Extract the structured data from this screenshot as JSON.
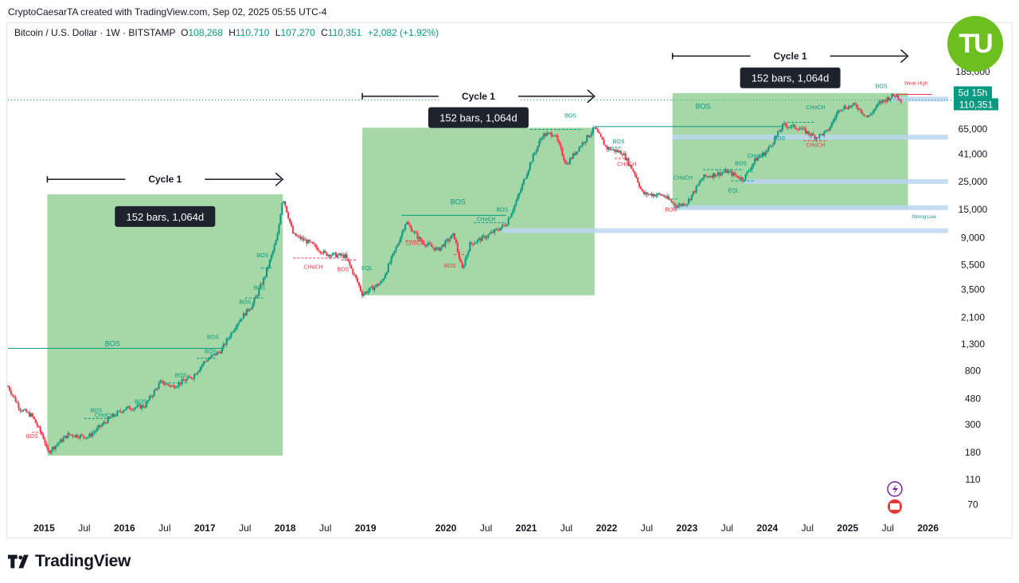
{
  "credit": "CryptoCaesarTA created with TradingView.com, Sep 02, 2025 05:55 UTC-4",
  "legend": {
    "symbol": "Bitcoin / U.S. Dollar · 1W · BITSTAMP",
    "open_label": "O",
    "open": "108,268",
    "high_label": "H",
    "high": "110,710",
    "low_label": "L",
    "low": "107,270",
    "close_label": "C",
    "close": "110,351",
    "change": "+2,082 (+1.92%)"
  },
  "badge": {
    "text": "TU"
  },
  "footer": {
    "brand": "TradingView",
    "logo_icon": "tradingview-logo-icon"
  },
  "colors": {
    "up": "#089981",
    "down": "#f23645",
    "zone": "#4caf50",
    "level": "#bbd6f2",
    "annotation_box": "#1e222d",
    "current_price": "#089981"
  },
  "chart_data": {
    "type": "candlestick",
    "scale": "log",
    "ylim": [
      55,
      320000
    ],
    "xlim": [
      2014.55,
      2026.3
    ],
    "y_ticks": [
      {
        "v": 185000,
        "t": "185,000"
      },
      {
        "v": 65000,
        "t": "65,000"
      },
      {
        "v": 41000,
        "t": "41,000"
      },
      {
        "v": 25000,
        "t": "25,000"
      },
      {
        "v": 15000,
        "t": "15,000"
      },
      {
        "v": 9000,
        "t": "9,000"
      },
      {
        "v": 5500,
        "t": "5,500"
      },
      {
        "v": 3500,
        "t": "3,500"
      },
      {
        "v": 2100,
        "t": "2,100"
      },
      {
        "v": 1300,
        "t": "1,300"
      },
      {
        "v": 800,
        "t": "800"
      },
      {
        "v": 480,
        "t": "480"
      },
      {
        "v": 300,
        "t": "300"
      },
      {
        "v": 180,
        "t": "180"
      },
      {
        "v": 110,
        "t": "110"
      },
      {
        "v": 70,
        "t": "70"
      }
    ],
    "x_ticks": [
      {
        "v": 2015,
        "t": "2015",
        "major": true
      },
      {
        "v": 2015.5,
        "t": "Jul",
        "major": false
      },
      {
        "v": 2016,
        "t": "2016",
        "major": true
      },
      {
        "v": 2016.5,
        "t": "Jul",
        "major": false
      },
      {
        "v": 2017,
        "t": "2017",
        "major": true
      },
      {
        "v": 2017.5,
        "t": "Jul",
        "major": false
      },
      {
        "v": 2018,
        "t": "2018",
        "major": true
      },
      {
        "v": 2018.5,
        "t": "Jul",
        "major": false
      },
      {
        "v": 2019,
        "t": "2019",
        "major": true
      },
      {
        "v": 2020,
        "t": "2020",
        "major": true
      },
      {
        "v": 2020.5,
        "t": "Jul",
        "major": false
      },
      {
        "v": 2021,
        "t": "2021",
        "major": true
      },
      {
        "v": 2021.5,
        "t": "Jul",
        "major": false
      },
      {
        "v": 2022,
        "t": "2022",
        "major": true
      },
      {
        "v": 2022.5,
        "t": "Jul",
        "major": false
      },
      {
        "v": 2023,
        "t": "2023",
        "major": true
      },
      {
        "v": 2023.5,
        "t": "Jul",
        "major": false
      },
      {
        "v": 2024,
        "t": "2024",
        "major": true
      },
      {
        "v": 2024.5,
        "t": "Jul",
        "major": false
      },
      {
        "v": 2025,
        "t": "2025",
        "major": true
      },
      {
        "v": 2025.5,
        "t": "Jul",
        "major": false
      },
      {
        "v": 2026,
        "t": "2026",
        "major": true
      }
    ],
    "price_path": [
      [
        2014.55,
        600
      ],
      [
        2014.7,
        400
      ],
      [
        2014.85,
        350
      ],
      [
        2015.0,
        230
      ],
      [
        2015.04,
        180
      ],
      [
        2015.3,
        250
      ],
      [
        2015.55,
        240
      ],
      [
        2015.8,
        330
      ],
      [
        2016.0,
        400
      ],
      [
        2016.25,
        420
      ],
      [
        2016.45,
        650
      ],
      [
        2016.6,
        600
      ],
      [
        2016.85,
        720
      ],
      [
        2017.0,
        950
      ],
      [
        2017.2,
        1150
      ],
      [
        2017.4,
        1900
      ],
      [
        2017.6,
        2700
      ],
      [
        2017.75,
        4500
      ],
      [
        2017.9,
        9000
      ],
      [
        2017.97,
        19000
      ],
      [
        2018.1,
        9500
      ],
      [
        2018.3,
        8200
      ],
      [
        2018.5,
        6700
      ],
      [
        2018.75,
        6400
      ],
      [
        2018.9,
        4000
      ],
      [
        2018.96,
        3200
      ],
      [
        2019.2,
        4000
      ],
      [
        2019.4,
        8000
      ],
      [
        2019.5,
        12000
      ],
      [
        2019.7,
        8300
      ],
      [
        2019.9,
        7200
      ],
      [
        2020.1,
        9500
      ],
      [
        2020.2,
        5000
      ],
      [
        2020.3,
        8000
      ],
      [
        2020.5,
        9200
      ],
      [
        2020.75,
        11500
      ],
      [
        2020.9,
        19000
      ],
      [
        2021.05,
        35000
      ],
      [
        2021.2,
        58000
      ],
      [
        2021.35,
        60000
      ],
      [
        2021.5,
        34000
      ],
      [
        2021.65,
        46000
      ],
      [
        2021.85,
        66000
      ],
      [
        2022.0,
        46000
      ],
      [
        2022.2,
        42000
      ],
      [
        2022.35,
        29000
      ],
      [
        2022.45,
        20000
      ],
      [
        2022.7,
        19500
      ],
      [
        2022.87,
        16000
      ],
      [
        2023.0,
        17000
      ],
      [
        2023.2,
        27000
      ],
      [
        2023.5,
        30000
      ],
      [
        2023.7,
        26000
      ],
      [
        2023.85,
        37000
      ],
      [
        2024.0,
        44000
      ],
      [
        2024.2,
        70000
      ],
      [
        2024.4,
        66000
      ],
      [
        2024.6,
        56000
      ],
      [
        2024.75,
        62000
      ],
      [
        2024.9,
        95000
      ],
      [
        2025.1,
        100000
      ],
      [
        2025.25,
        80000
      ],
      [
        2025.4,
        105000
      ],
      [
        2025.55,
        118000
      ],
      [
        2025.6,
        120000
      ],
      [
        2025.67,
        110351
      ]
    ],
    "current_price": {
      "value": 110351,
      "label": "110,351",
      "countdown": "5d 15h"
    },
    "zones": [
      {
        "x0": 2015.04,
        "x1": 2017.97,
        "y0": 170,
        "y1": 19800
      },
      {
        "x0": 2018.96,
        "x1": 2021.85,
        "y0": 3150,
        "y1": 66500
      },
      {
        "x0": 2022.82,
        "x1": 2025.75,
        "y0": 15200,
        "y1": 125000
      }
    ],
    "cycles": [
      {
        "label": "Cycle 1",
        "x0": 2015.04,
        "x1": 2017.97,
        "y": 26000,
        "box": "152 bars, 1,064d",
        "box_y": 13200
      },
      {
        "label": "Cycle 1",
        "x0": 2018.96,
        "x1": 2021.85,
        "y": 118000,
        "box": "152 bars, 1,064d",
        "box_y": 80000
      },
      {
        "label": "Cycle 1",
        "x0": 2022.82,
        "x1": 2025.75,
        "y": 245000,
        "box": "152 bars, 1,064d",
        "box_y": 165000
      }
    ],
    "levels": [
      {
        "x0": 2022.82,
        "x1": 2026.25,
        "y": 56000
      },
      {
        "x0": 2023.7,
        "x1": 2026.25,
        "y": 25000
      },
      {
        "x0": 2022.82,
        "x1": 2026.25,
        "y": 15500
      },
      {
        "x0": 2020.7,
        "x1": 2026.25,
        "y": 10200
      },
      {
        "x0": 2025.55,
        "x1": 2026.25,
        "y": 112000
      }
    ],
    "bos_lines": [
      {
        "x0": 2014.55,
        "x1": 2017.2,
        "y": 1200,
        "color": "up"
      },
      {
        "x0": 2019.45,
        "x1": 2020.75,
        "y": 13500,
        "color": "up"
      },
      {
        "x0": 2021.85,
        "x1": 2024.2,
        "y": 68000,
        "color": "up"
      },
      {
        "x0": 2025.6,
        "x1": 2026.05,
        "y": 122000,
        "color": "down"
      }
    ],
    "dashed_lines": [
      {
        "x0": 2015.5,
        "x1": 2015.85,
        "y": 335,
        "color": "up"
      },
      {
        "x0": 2016.45,
        "x1": 2016.8,
        "y": 640,
        "color": "up"
      },
      {
        "x0": 2016.9,
        "x1": 2017.15,
        "y": 1000,
        "color": "up"
      },
      {
        "x0": 2017.5,
        "x1": 2017.75,
        "y": 3000,
        "color": "up"
      },
      {
        "x0": 2017.7,
        "x1": 2017.85,
        "y": 5200,
        "color": "up"
      },
      {
        "x0": 2018.1,
        "x1": 2018.7,
        "y": 6200,
        "color": "down"
      },
      {
        "x0": 2018.7,
        "x1": 2018.9,
        "y": 6000,
        "color": "down"
      },
      {
        "x0": 2019.5,
        "x1": 2019.75,
        "y": 8500,
        "color": "down"
      },
      {
        "x0": 2020.1,
        "x1": 2020.25,
        "y": 6600,
        "color": "down"
      },
      {
        "x0": 2020.35,
        "x1": 2020.75,
        "y": 11800,
        "color": "up"
      },
      {
        "x0": 2021.05,
        "x1": 2021.7,
        "y": 64500,
        "color": "up"
      },
      {
        "x0": 2022.0,
        "x1": 2022.2,
        "y": 46500,
        "color": "up"
      },
      {
        "x0": 2022.1,
        "x1": 2022.3,
        "y": 38000,
        "color": "down"
      },
      {
        "x0": 2022.75,
        "x1": 2022.9,
        "y": 18200,
        "color": "up"
      },
      {
        "x0": 2023.2,
        "x1": 2023.7,
        "y": 31000,
        "color": "up"
      },
      {
        "x0": 2023.55,
        "x1": 2023.85,
        "y": 25300,
        "color": "up"
      },
      {
        "x0": 2024.25,
        "x1": 2024.6,
        "y": 73500,
        "color": "up"
      },
      {
        "x0": 2024.45,
        "x1": 2024.75,
        "y": 52500,
        "color": "down"
      },
      {
        "x0": 2014.85,
        "x1": 2015.0,
        "y": 260,
        "color": "down"
      }
    ],
    "markers": [
      {
        "text": "BOS",
        "x": 2015.85,
        "y": 1250,
        "color": "up",
        "size": 9
      },
      {
        "text": "BOS",
        "x": 2014.85,
        "y": 235,
        "color": "down",
        "size": 7
      },
      {
        "text": "CHoCH",
        "x": 2015.75,
        "y": 345,
        "color": "up",
        "size": 7
      },
      {
        "text": "BOS",
        "x": 2015.65,
        "y": 375,
        "color": "up",
        "size": 7
      },
      {
        "text": "BOS",
        "x": 2016.2,
        "y": 440,
        "color": "up",
        "size": 7
      },
      {
        "text": "BOS",
        "x": 2016.7,
        "y": 710,
        "color": "up",
        "size": 7
      },
      {
        "text": "BOS",
        "x": 2017.07,
        "y": 1100,
        "color": "up",
        "size": 7
      },
      {
        "text": "BOS",
        "x": 2017.1,
        "y": 1420,
        "color": "up",
        "size": 7
      },
      {
        "text": "BOS",
        "x": 2017.5,
        "y": 2700,
        "color": "up",
        "size": 7
      },
      {
        "text": "BOS",
        "x": 2017.68,
        "y": 3500,
        "color": "up",
        "size": 7
      },
      {
        "text": "BOS",
        "x": 2017.72,
        "y": 6300,
        "color": "up",
        "size": 7
      },
      {
        "text": "CHoCH",
        "x": 2018.35,
        "y": 5100,
        "color": "down",
        "size": 7
      },
      {
        "text": "BOS",
        "x": 2018.72,
        "y": 4900,
        "color": "down",
        "size": 7
      },
      {
        "text": "EQL",
        "x": 2019.02,
        "y": 5000,
        "color": "up",
        "size": 7
      },
      {
        "text": "BOS",
        "x": 2020.15,
        "y": 16500,
        "color": "up",
        "size": 9
      },
      {
        "text": "CHoCH",
        "x": 2019.62,
        "y": 7900,
        "color": "down",
        "size": 7
      },
      {
        "text": "BOS",
        "x": 2020.05,
        "y": 5200,
        "color": "down",
        "size": 7
      },
      {
        "text": "CHoCH",
        "x": 2020.5,
        "y": 12200,
        "color": "up",
        "size": 7
      },
      {
        "text": "BOS",
        "x": 2020.7,
        "y": 14500,
        "color": "up",
        "size": 7
      },
      {
        "text": "BOS",
        "x": 2021.55,
        "y": 80000,
        "color": "up",
        "size": 7
      },
      {
        "text": "BOS",
        "x": 2022.15,
        "y": 50000,
        "color": "up",
        "size": 7
      },
      {
        "text": "CHoCH",
        "x": 2022.25,
        "y": 33000,
        "color": "down",
        "size": 7
      },
      {
        "text": "BOS",
        "x": 2022.8,
        "y": 14500,
        "color": "down",
        "size": 7
      },
      {
        "text": "CHoCH",
        "x": 2022.95,
        "y": 25800,
        "color": "up",
        "size": 7
      },
      {
        "text": "BOS",
        "x": 2023.2,
        "y": 94000,
        "color": "up",
        "size": 9
      },
      {
        "text": "EQL",
        "x": 2023.58,
        "y": 20500,
        "color": "up",
        "size": 7
      },
      {
        "text": "BOS",
        "x": 2023.67,
        "y": 33500,
        "color": "up",
        "size": 7
      },
      {
        "text": "CHoCH",
        "x": 2023.87,
        "y": 38500,
        "color": "up",
        "size": 7
      },
      {
        "text": "BOS",
        "x": 2024.15,
        "y": 53000,
        "color": "up",
        "size": 7
      },
      {
        "text": "CHoCH",
        "x": 2024.6,
        "y": 47000,
        "color": "down",
        "size": 7
      },
      {
        "text": "CHoCH",
        "x": 2024.6,
        "y": 93000,
        "color": "up",
        "size": 7
      },
      {
        "text": "BOS",
        "x": 2025.42,
        "y": 137000,
        "color": "up",
        "size": 7
      },
      {
        "text": "Weak High",
        "x": 2025.85,
        "y": 145000,
        "color": "down",
        "size": 6
      },
      {
        "text": "Strong Low",
        "x": 2025.95,
        "y": 12800,
        "color": "up",
        "size": 6
      }
    ]
  }
}
